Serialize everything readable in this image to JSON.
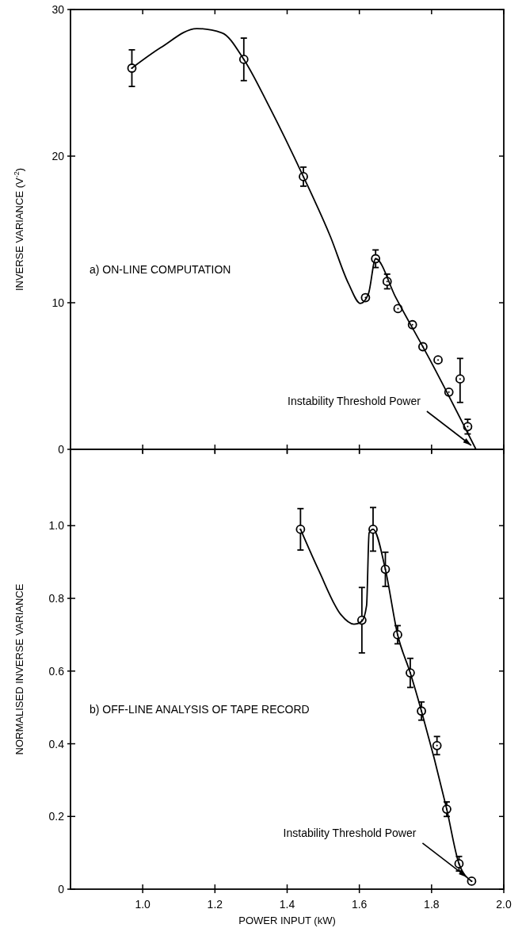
{
  "chart_data": [
    {
      "type": "scatter",
      "title": "a) ON-LINE COMPUTATION",
      "ylabel": "INVERSE VARIANCE (V$^{-2}$)",
      "xlim": [
        0.8,
        2.0
      ],
      "xticks": [
        1,
        1.2,
        1.4,
        1.6,
        1.8,
        2
      ],
      "ylim": [
        0,
        30
      ],
      "yticks": [
        0,
        10,
        20,
        30
      ],
      "tick_labels": "y",
      "grid": false,
      "series": [
        {
          "type": "scatter",
          "color": "#000000",
          "marker": "circle",
          "x": [
            0.97,
            1.28,
            1.445,
            1.617,
            1.645,
            1.677,
            1.707,
            1.747,
            1.776,
            1.818,
            1.848,
            1.879,
            1.9
          ],
          "values": [
            26.0,
            26.6,
            18.6,
            10.35,
            13.0,
            11.45,
            9.6,
            8.5,
            7.0,
            6.1,
            3.9,
            4.8,
            1.55
          ],
          "errors": [
            1.25,
            1.45,
            0.65,
            null,
            0.6,
            0.5,
            null,
            null,
            null,
            null,
            null,
            [
              3.2,
              6.2
            ],
            0.5
          ]
        },
        {
          "type": "line",
          "color": "#000000",
          "marker": "none",
          "line_style": "solid",
          "x": [
            0.97,
            1.05,
            1.15,
            1.22,
            1.28,
            1.35,
            1.445,
            1.52,
            1.57,
            1.603,
            1.625,
            1.645,
            1.7,
            1.8,
            1.923
          ],
          "values": [
            26.0,
            27.4,
            28.7,
            28.4,
            26.6,
            23.4,
            18.6,
            14.5,
            11.3,
            9.95,
            10.6,
            13.0,
            10.4,
            5.9,
            0
          ]
        }
      ],
      "annotations": [
        {
          "text": "Instability Threshold Power",
          "x": 1.923,
          "y": 0
        }
      ]
    },
    {
      "type": "scatter",
      "title": "b) OFF-LINE ANALYSIS OF TAPE RECORD",
      "xlabel": "POWER INPUT (kW)",
      "ylabel": "NORMALISED INVERSE VARIANCE",
      "xlim": [
        0.8,
        2.0
      ],
      "xticks": [
        {
          "value": 1.0,
          "label": "1.0"
        },
        {
          "value": 1.2,
          "label": "1.2"
        },
        {
          "value": 1.4,
          "label": "1.4"
        },
        {
          "value": 1.6,
          "label": "1.6"
        },
        {
          "value": 1.8,
          "label": "1.8"
        },
        {
          "value": 2.0,
          "label": "2.0"
        }
      ],
      "ylim": [
        0,
        1.21
      ],
      "yticks": [
        0,
        0.2,
        0.4,
        0.6,
        0.8,
        {
          "value": 1.0,
          "label": "1.0"
        }
      ],
      "grid": false,
      "series": [
        {
          "type": "scatter",
          "color": "#000000",
          "marker": "circle",
          "x": [
            1.437,
            1.607,
            1.638,
            1.672,
            1.706,
            1.741,
            1.772,
            1.815,
            1.842,
            1.876,
            1.911
          ],
          "values": [
            0.99,
            0.74,
            0.99,
            0.88,
            0.7,
            0.595,
            0.49,
            0.395,
            0.22,
            0.07,
            0.022
          ],
          "errors": [
            0.057,
            0.09,
            0.06,
            0.047,
            0.025,
            0.04,
            0.025,
            0.025,
            0.02,
            0.02,
            null
          ]
        },
        {
          "type": "line",
          "color": "#000000",
          "marker": "none",
          "line_style": "solid",
          "x": [
            1.437,
            1.488,
            1.549,
            1.585,
            1.607,
            1.62,
            1.627,
            1.638,
            1.672,
            1.706,
            1.741,
            1.772,
            1.842,
            1.876,
            1.911
          ],
          "values": [
            0.99,
            0.876,
            0.755,
            0.729,
            0.737,
            0.78,
            0.98,
            0.99,
            0.88,
            0.7,
            0.595,
            0.49,
            0.22,
            0.07,
            0.022
          ]
        }
      ],
      "annotations": [
        {
          "text": "Instability Threshold Power",
          "x": 1.911,
          "y": 0.022
        }
      ]
    }
  ]
}
